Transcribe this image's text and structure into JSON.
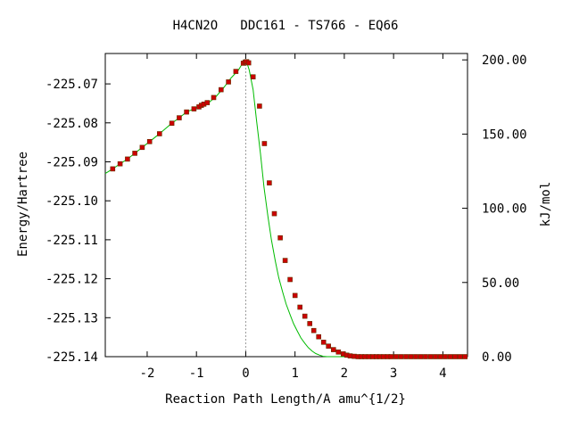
{
  "chart_data": {
    "type": "line",
    "title": "H4CN2O   DDC161 - TS766 - EQ66",
    "xlabel": "Reaction Path Length/A amu^{1/2}",
    "ylabel": "Energy/Hartree",
    "y2label": "kJ/mol",
    "xlim": [
      -2.85,
      4.5
    ],
    "ylim": [
      -225.14,
      -225.0622
    ],
    "y2lim": [
      0.0,
      204.3
    ],
    "x_ticks": [
      "-2",
      "-1",
      "0",
      "1",
      "2",
      "3",
      "4"
    ],
    "x_tick_values": [
      -2,
      -1,
      0,
      1,
      2,
      3,
      4
    ],
    "y_ticks": [
      "-225.07",
      "-225.08",
      "-225.09",
      "-225.10",
      "-225.11",
      "-225.12",
      "-225.13",
      "-225.14"
    ],
    "y_tick_values": [
      -225.07,
      -225.08,
      -225.09,
      -225.1,
      -225.11,
      -225.12,
      -225.13,
      -225.14
    ],
    "y2_ticks": [
      "200.00",
      "150.00",
      "100.00",
      "50.00",
      "0.00"
    ],
    "y2_tick_values": [
      200,
      150,
      100,
      50,
      0
    ],
    "ts_marker_x": 0.0,
    "colors": {
      "line": "#00bb00",
      "points": "#cc0000",
      "point_edge": "#663300",
      "ts_line": "#999999",
      "axis": "#000000"
    },
    "series": [
      {
        "x": [
          -2.85,
          -2.7,
          -2.55,
          -2.4,
          -2.25,
          -2.1,
          -1.95,
          -1.8,
          -1.65,
          -1.5,
          -1.35,
          -1.2,
          -1.05,
          -0.9,
          -0.75,
          -0.6,
          -0.45,
          -0.3,
          -0.15,
          -0.07,
          -0.03,
          0.0,
          0.03,
          0.07,
          0.15,
          0.22,
          0.3,
          0.37,
          0.45,
          0.52,
          0.6,
          0.67,
          0.75,
          0.82,
          0.9,
          0.97,
          1.05,
          1.12,
          1.2,
          1.27,
          1.35,
          1.42,
          1.5,
          1.57,
          1.65,
          1.72,
          1.8,
          1.87,
          1.95,
          2.02,
          2.1,
          2.17,
          2.25,
          2.32,
          2.4,
          2.47,
          2.55,
          2.62,
          2.7,
          2.77,
          2.85,
          2.92,
          3.0,
          3.07,
          3.15,
          3.22,
          3.3,
          3.37,
          3.45,
          3.52,
          3.6,
          3.67,
          3.75,
          3.82,
          3.9,
          3.97,
          4.05,
          4.12,
          4.2,
          4.27,
          4.35,
          4.42,
          4.5
        ],
        "y": [
          -225.093,
          -225.0918,
          -225.0905,
          -225.0893,
          -225.0878,
          -225.0863,
          -225.0848,
          -225.0833,
          -225.0817,
          -225.0801,
          -225.0787,
          -225.0772,
          -225.0764,
          -225.0755,
          -225.0748,
          -225.0732,
          -225.071,
          -225.0685,
          -225.0665,
          -225.0648,
          -225.0644,
          -225.0643,
          -225.0648,
          -225.0664,
          -225.0715,
          -225.0795,
          -225.088,
          -225.0965,
          -225.104,
          -225.11,
          -225.1155,
          -225.1197,
          -225.1235,
          -225.1265,
          -225.1292,
          -225.1315,
          -225.1335,
          -225.1352,
          -225.1366,
          -225.1377,
          -225.1386,
          -225.1392,
          -225.1396,
          -225.1399,
          -225.14,
          -225.14,
          -225.14,
          -225.14,
          -225.14,
          -225.14,
          -225.14,
          -225.14,
          -225.14,
          -225.14,
          -225.14,
          -225.14,
          -225.14,
          -225.14,
          -225.14,
          -225.14,
          -225.14,
          -225.14,
          -225.14,
          -225.14,
          -225.14,
          -225.14,
          -225.14,
          -225.14,
          -225.14,
          -225.14,
          -225.14,
          -225.14,
          -225.14,
          -225.14,
          -225.14,
          -225.14,
          -225.14,
          -225.14,
          -225.14,
          -225.14,
          -225.14,
          -225.14,
          -225.14
        ]
      }
    ],
    "points": {
      "x": [
        -2.7,
        -2.55,
        -2.4,
        -2.25,
        -2.1,
        -1.95,
        -1.75,
        -1.5,
        -1.35,
        -1.2,
        -1.05,
        -0.95,
        -0.9,
        -0.85,
        -0.78,
        -0.65,
        -0.5,
        -0.35,
        -0.2,
        -0.05,
        -0.01,
        0.02,
        0.06,
        0.15,
        0.28,
        0.38,
        0.48,
        0.58,
        0.7,
        0.8,
        0.9,
        1.0,
        1.1,
        1.2,
        1.3,
        1.38,
        1.48,
        1.58,
        1.68,
        1.78,
        1.88,
        1.98,
        2.05,
        2.12,
        2.2,
        2.28,
        2.35,
        2.42,
        2.5,
        2.58,
        2.65,
        2.72,
        2.8,
        2.88,
        2.95,
        3.05,
        3.15,
        3.25,
        3.35,
        3.45,
        3.55,
        3.65,
        3.75,
        3.85,
        3.95,
        4.05,
        4.15,
        4.25,
        4.35,
        4.45
      ],
      "y": [
        -225.0918,
        -225.0905,
        -225.0893,
        -225.0878,
        -225.0863,
        -225.0848,
        -225.0828,
        -225.0801,
        -225.0787,
        -225.0772,
        -225.0764,
        -225.0759,
        -225.0755,
        -225.0752,
        -225.0748,
        -225.0735,
        -225.0715,
        -225.0695,
        -225.0668,
        -225.0647,
        -225.0644,
        -225.0643,
        -225.0646,
        -225.0682,
        -225.0757,
        -225.0853,
        -225.0954,
        -225.1033,
        -225.1095,
        -225.1153,
        -225.1202,
        -225.1243,
        -225.1273,
        -225.1296,
        -225.1315,
        -225.1333,
        -225.1349,
        -225.1363,
        -225.1373,
        -225.1382,
        -225.1388,
        -225.1393,
        -225.1396,
        -225.1398,
        -225.1399,
        -225.14,
        -225.14,
        -225.14,
        -225.14,
        -225.14,
        -225.14,
        -225.14,
        -225.14,
        -225.14,
        -225.14,
        -225.14,
        -225.14,
        -225.14,
        -225.14,
        -225.14,
        -225.14,
        -225.14,
        -225.14,
        -225.14,
        -225.14,
        -225.14,
        -225.14,
        -225.14,
        -225.14,
        -225.14
      ]
    }
  }
}
